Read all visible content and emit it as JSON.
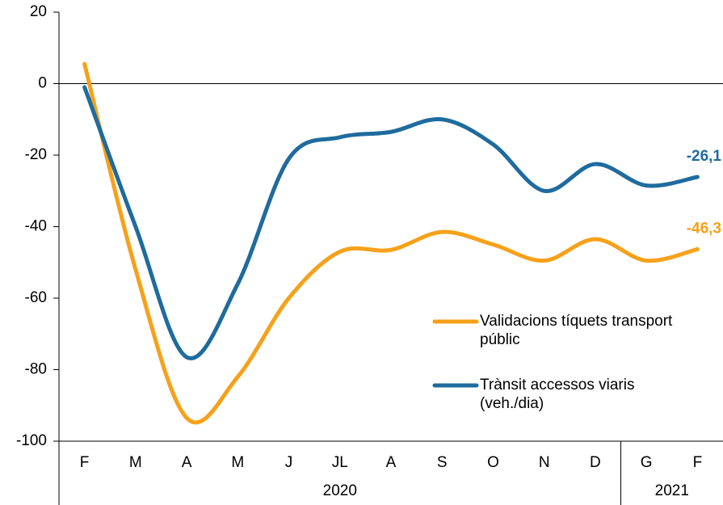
{
  "chart_data": {
    "type": "line",
    "categories": [
      "F",
      "M",
      "A",
      "M",
      "J",
      "JL",
      "A",
      "S",
      "O",
      "N",
      "D",
      "G",
      "F"
    ],
    "x_groups": [
      "2020",
      "2021"
    ],
    "series": [
      {
        "name": "Validacions tíquets transport públic",
        "color": "#f7a11a",
        "values": [
          5.5,
          -52,
          -93.5,
          -82,
          -60,
          -47,
          -46.5,
          -41.5,
          -45,
          -49.5,
          -43.5,
          -49.5,
          -46.3
        ],
        "last_label": "-46,3"
      },
      {
        "name": "Trànsit accessos viaris (veh./dia)",
        "color": "#1f6b9e",
        "values": [
          -1,
          -40,
          -76.5,
          -56,
          -21,
          -15,
          -13.5,
          -10,
          -17,
          -30,
          -22.5,
          -28.5,
          -26.1
        ],
        "last_label": "-26,1"
      }
    ],
    "ylim": [
      -100,
      20
    ],
    "yticks": [
      -100,
      -80,
      -60,
      -40,
      -20,
      0,
      20
    ]
  }
}
